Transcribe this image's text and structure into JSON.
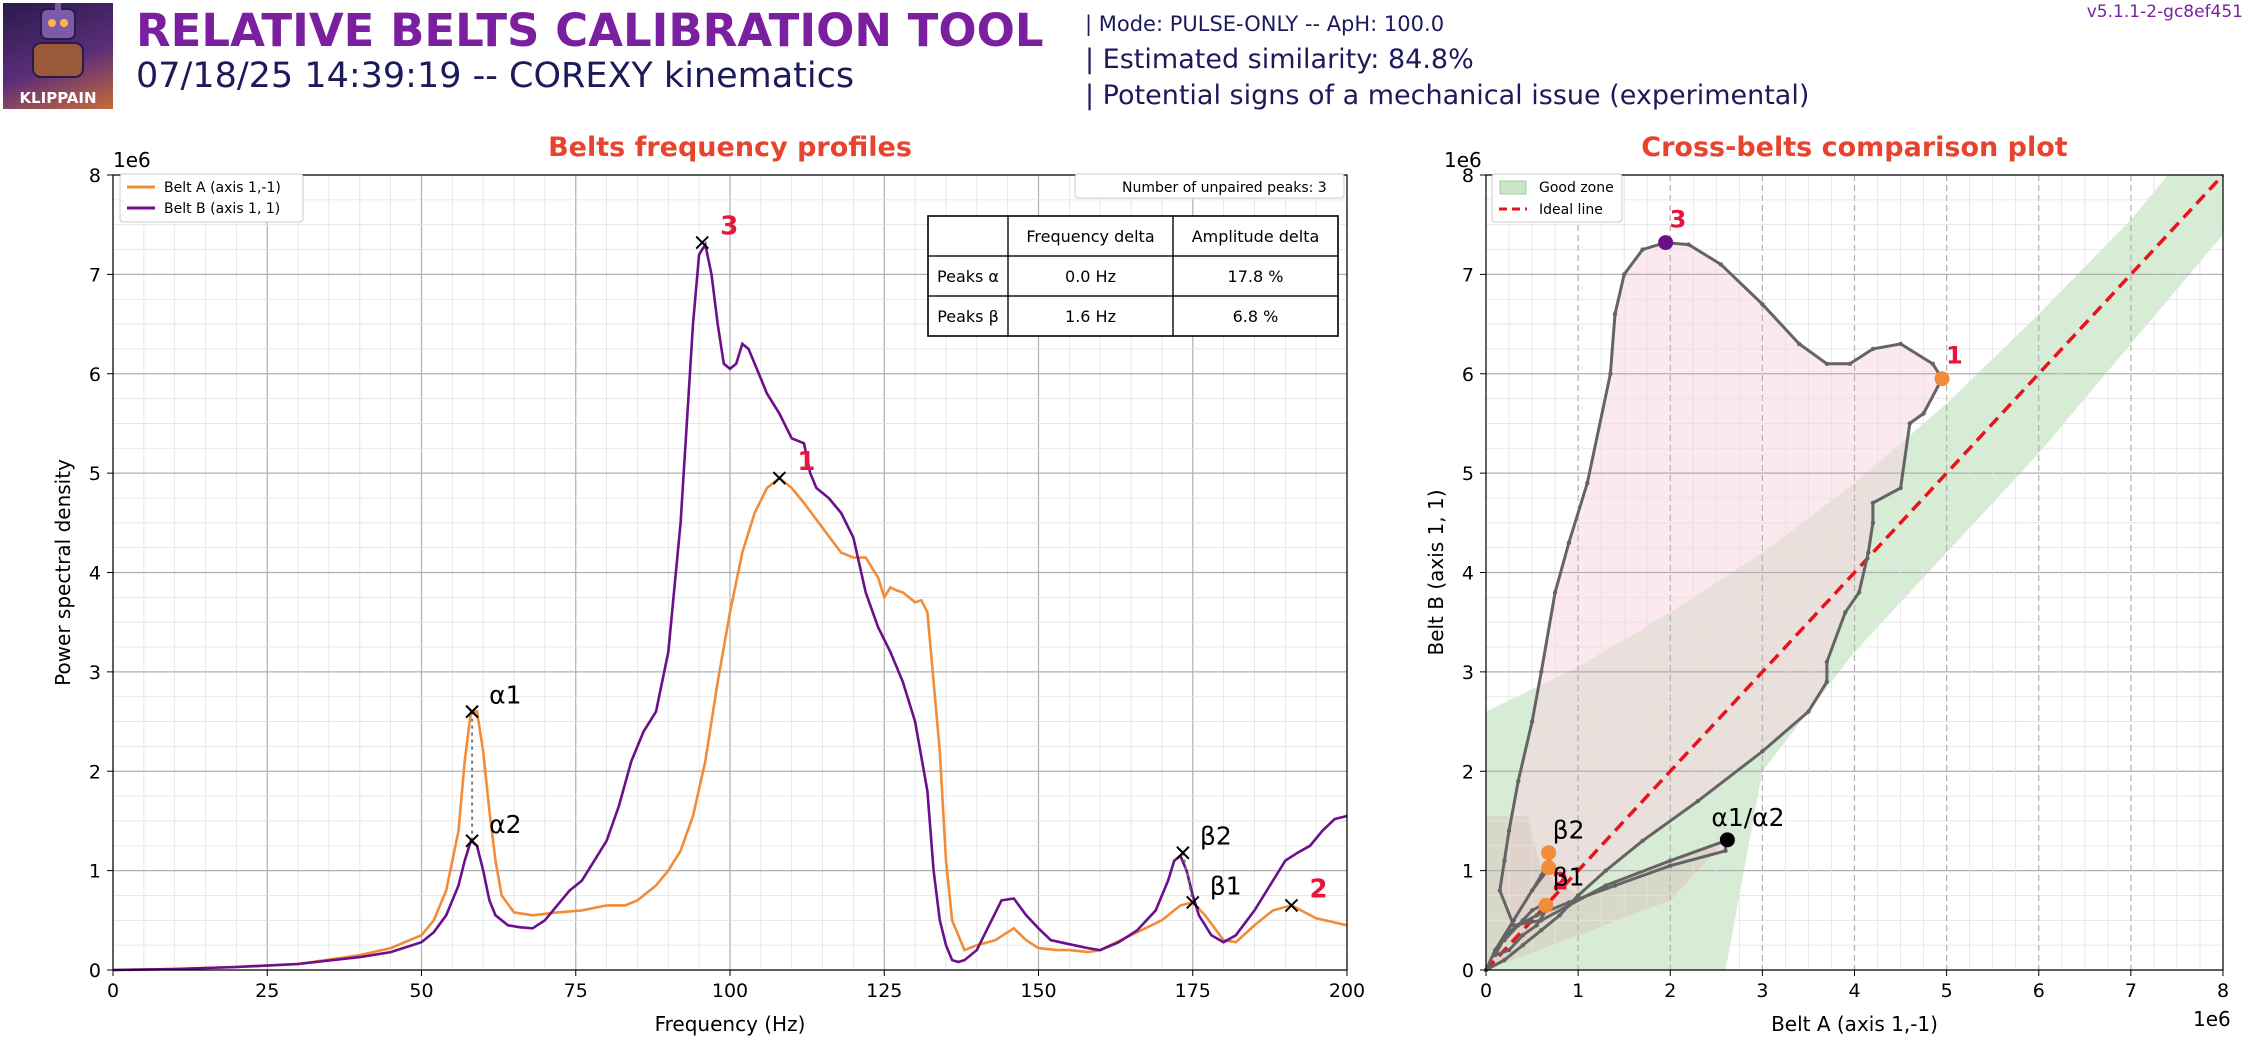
{
  "header": {
    "title": "RELATIVE BELTS CALIBRATION TOOL",
    "subtitle": "07/18/25 14:39:19 -- COREXY kinematics",
    "mode": "| Mode: PULSE-ONLY -- ApH: 100.0",
    "similarity": "| Estimated similarity: 84.8%",
    "issue": "| Potential signs of a mechanical issue (experimental)",
    "version": "v5.1.1-2-gc8ef451",
    "logo_text": "KLIPPAIN",
    "logo_icon": "klippain-mascot-logo"
  },
  "colors": {
    "belt_a": "#f28c38",
    "belt_b": "#6b0f8c",
    "title_red": "#e8432d",
    "peak_label": "#e8143c",
    "good_zone": "#c9e6c6",
    "ideal_line": "#e8141c",
    "path": "#646464",
    "pink_zone": "#f8d7e2",
    "header_purple": "#7a1fa0",
    "header_navy": "#1c1a5a"
  },
  "chart_data": [
    {
      "type": "line",
      "title": "Belts frequency profiles",
      "xlabel": "Frequency (Hz)",
      "ylabel": "Power spectral density",
      "y_exponent_label": "1e6",
      "xlim": [
        0,
        200
      ],
      "ylim": [
        0,
        8
      ],
      "y_scale": 1000000,
      "grid": true,
      "x_ticks": [
        0,
        25,
        50,
        75,
        100,
        125,
        150,
        175,
        200
      ],
      "y_ticks": [
        0,
        1,
        2,
        3,
        4,
        5,
        6,
        7,
        8
      ],
      "legend": {
        "placement": "top-left",
        "entries": [
          "Belt A (axis 1,-1)",
          "Belt B (axis 1, 1)"
        ]
      },
      "unpaired_label": "Number of unpaired peaks: 3",
      "table": {
        "headers": [
          "",
          "Frequency delta",
          "Amplitude delta"
        ],
        "rows": [
          [
            "Peaks α",
            "0.0 Hz",
            "17.8 %"
          ],
          [
            "Peaks β",
            "1.6 Hz",
            "6.8 %"
          ]
        ]
      },
      "series": [
        {
          "name": "Belt A (axis 1,-1)",
          "x": [
            0,
            10,
            20,
            30,
            40,
            45,
            50,
            52,
            54,
            56,
            57,
            58,
            59,
            60,
            61,
            62,
            63,
            65,
            68,
            72,
            76,
            80,
            83,
            85,
            88,
            90,
            92,
            94,
            96,
            98,
            100,
            102,
            104,
            106,
            108,
            110,
            112,
            115,
            118,
            120,
            122,
            124,
            125,
            126,
            127,
            128,
            129,
            130,
            131,
            132,
            133,
            134,
            135,
            136,
            138,
            140,
            143,
            146,
            148,
            150,
            153,
            155,
            158,
            160,
            165,
            170,
            173,
            175,
            177,
            180,
            182,
            185,
            188,
            191,
            195,
            200
          ],
          "y": [
            0,
            0.01,
            0.03,
            0.06,
            0.15,
            0.22,
            0.35,
            0.5,
            0.8,
            1.4,
            2.1,
            2.6,
            2.6,
            2.2,
            1.6,
            1.1,
            0.75,
            0.58,
            0.55,
            0.58,
            0.6,
            0.65,
            0.65,
            0.7,
            0.85,
            1.0,
            1.2,
            1.55,
            2.1,
            2.9,
            3.6,
            4.2,
            4.6,
            4.85,
            4.95,
            4.85,
            4.7,
            4.45,
            4.2,
            4.15,
            4.15,
            3.95,
            3.75,
            3.85,
            3.82,
            3.8,
            3.75,
            3.7,
            3.72,
            3.6,
            2.9,
            2.2,
            1.1,
            0.5,
            0.2,
            0.25,
            0.3,
            0.42,
            0.3,
            0.22,
            0.2,
            0.2,
            0.18,
            0.2,
            0.35,
            0.5,
            0.65,
            0.68,
            0.55,
            0.3,
            0.28,
            0.45,
            0.6,
            0.65,
            0.52,
            0.45
          ]
        },
        {
          "name": "Belt B (axis 1, 1)",
          "x": [
            0,
            10,
            20,
            30,
            40,
            45,
            50,
            52,
            54,
            56,
            57,
            58,
            59,
            60,
            61,
            62,
            64,
            66,
            68,
            70,
            72,
            74,
            76,
            78,
            80,
            82,
            84,
            86,
            88,
            90,
            92,
            94,
            95,
            96,
            97,
            98,
            99,
            100,
            101,
            102,
            103,
            104,
            105,
            106,
            108,
            110,
            112,
            113,
            114,
            115,
            116,
            118,
            120,
            122,
            124,
            126,
            128,
            130,
            132,
            133,
            134,
            135,
            136,
            137,
            138,
            140,
            142,
            144,
            146,
            148,
            150,
            152,
            155,
            158,
            160,
            163,
            166,
            169,
            171,
            172,
            173,
            174,
            175,
            176,
            178,
            180,
            182,
            185,
            188,
            190,
            192,
            194,
            196,
            198,
            200
          ],
          "y": [
            0,
            0.01,
            0.03,
            0.06,
            0.13,
            0.18,
            0.28,
            0.38,
            0.55,
            0.85,
            1.1,
            1.3,
            1.25,
            1.0,
            0.7,
            0.55,
            0.45,
            0.43,
            0.42,
            0.5,
            0.65,
            0.8,
            0.9,
            1.1,
            1.3,
            1.65,
            2.1,
            2.4,
            2.6,
            3.2,
            4.5,
            6.5,
            7.2,
            7.3,
            7.0,
            6.5,
            6.1,
            6.05,
            6.1,
            6.3,
            6.25,
            6.1,
            5.95,
            5.8,
            5.6,
            5.35,
            5.3,
            5.0,
            4.85,
            4.8,
            4.75,
            4.6,
            4.35,
            3.8,
            3.45,
            3.2,
            2.9,
            2.5,
            1.8,
            1.0,
            0.5,
            0.25,
            0.1,
            0.08,
            0.1,
            0.2,
            0.45,
            0.7,
            0.72,
            0.55,
            0.42,
            0.3,
            0.26,
            0.22,
            0.2,
            0.28,
            0.4,
            0.6,
            0.9,
            1.1,
            1.15,
            1.0,
            0.75,
            0.55,
            0.35,
            0.28,
            0.35,
            0.6,
            0.9,
            1.1,
            1.18,
            1.25,
            1.4,
            1.52,
            1.55
          ]
        }
      ],
      "peaks": [
        {
          "label": "α1",
          "x": 58.2,
          "y": 2.6,
          "style": "greek"
        },
        {
          "label": "α2",
          "x": 58.2,
          "y": 1.3,
          "style": "greek"
        },
        {
          "label": "β1",
          "x": 175.0,
          "y": 0.68,
          "style": "greek"
        },
        {
          "label": "β2",
          "x": 173.4,
          "y": 1.18,
          "style": "greek"
        },
        {
          "label": "1",
          "x": 108.0,
          "y": 4.95,
          "style": "unpaired"
        },
        {
          "label": "2",
          "x": 191.0,
          "y": 0.65,
          "style": "unpaired"
        },
        {
          "label": "3",
          "x": 95.5,
          "y": 7.32,
          "style": "unpaired"
        }
      ]
    },
    {
      "type": "scatter",
      "title": "Cross-belts comparison plot",
      "xlabel": "Belt A (axis 1,-1)",
      "ylabel": "Belt B (axis 1, 1)",
      "x_exponent_label": "1e6",
      "y_exponent_label": "1e6",
      "xlim": [
        0,
        8
      ],
      "ylim": [
        0,
        8
      ],
      "grid": true,
      "x_ticks": [
        0,
        1,
        2,
        3,
        4,
        5,
        6,
        7,
        8
      ],
      "y_ticks": [
        0,
        1,
        2,
        3,
        4,
        5,
        6,
        7,
        8
      ],
      "legend": {
        "placement": "top-left",
        "entries": [
          "Good zone",
          "Ideal line"
        ]
      },
      "path": {
        "x": [
          0,
          0.2,
          0.4,
          0.6,
          0.8,
          1.0,
          1.3,
          1.7,
          2.3,
          3.0,
          3.5,
          3.7,
          3.7,
          3.9,
          4.05,
          4.15,
          4.2,
          4.2,
          4.5,
          4.6,
          4.75,
          4.95,
          4.85,
          4.5,
          4.2,
          3.95,
          3.7,
          3.4,
          3.0,
          2.55,
          2.2,
          1.95,
          1.7,
          1.5,
          1.4,
          1.35,
          1.1,
          0.9,
          0.75,
          0.6,
          0.5,
          0.35,
          0.25,
          0.2,
          0.15,
          0.3,
          0.6,
          0.9,
          1.3,
          2.0,
          2.6,
          2.6,
          2.0,
          1.4,
          0.9,
          0.55,
          0.35,
          0.25,
          0.2,
          0.4,
          0.5,
          0.6,
          0.65,
          0.55,
          0.4,
          0.25,
          0.1,
          0.3,
          0.6,
          0.7,
          0.68,
          0.5,
          0.3,
          0.1,
          0
        ],
        "y": [
          0,
          0.1,
          0.25,
          0.4,
          0.55,
          0.75,
          1.0,
          1.3,
          1.7,
          2.2,
          2.6,
          2.9,
          3.1,
          3.6,
          3.8,
          4.2,
          4.5,
          4.7,
          4.85,
          5.5,
          5.6,
          5.95,
          6.1,
          6.3,
          6.25,
          6.1,
          6.1,
          6.3,
          6.7,
          7.1,
          7.3,
          7.32,
          7.25,
          7.0,
          6.6,
          6.0,
          4.9,
          4.3,
          3.8,
          3.0,
          2.5,
          1.9,
          1.4,
          1.1,
          0.8,
          0.45,
          0.5,
          0.65,
          0.85,
          1.1,
          1.3,
          1.2,
          1.05,
          0.85,
          0.68,
          0.55,
          0.45,
          0.38,
          0.3,
          0.5,
          0.6,
          0.65,
          0.6,
          0.45,
          0.35,
          0.2,
          0.15,
          0.5,
          0.95,
          1.15,
          1.02,
          0.8,
          0.5,
          0.2,
          0
        ]
      },
      "points": [
        {
          "label": "3",
          "x": 1.95,
          "y": 7.32,
          "color": "belt_b",
          "style": "unpaired"
        },
        {
          "label": "1",
          "x": 4.95,
          "y": 5.95,
          "color": "belt_a",
          "style": "unpaired"
        },
        {
          "label": "2",
          "x": 0.65,
          "y": 0.65,
          "color": "belt_a",
          "style": "unpaired"
        },
        {
          "label": "α1/α2",
          "x": 2.62,
          "y": 1.31,
          "color": "black",
          "style": "greek"
        },
        {
          "label": "β2",
          "x": 0.68,
          "y": 1.18,
          "color": "belt_a",
          "style": "greek"
        },
        {
          "label": "β1",
          "x": 0.68,
          "y": 1.03,
          "color": "belt_a",
          "style": "greek"
        }
      ]
    }
  ]
}
